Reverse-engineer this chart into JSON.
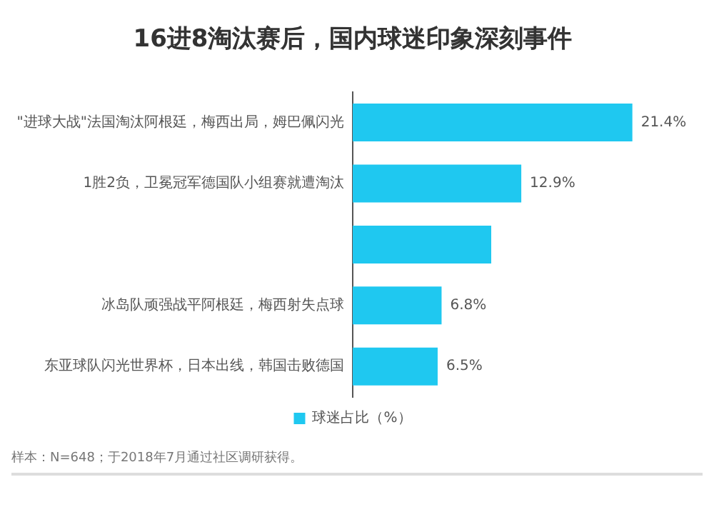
{
  "chart_data": {
    "type": "bar",
    "orientation": "horizontal",
    "title": "16进8淘汰赛后，国内球迷印象深刻事件",
    "categories": [
      "\"进球大战\"法国淘汰阿根廷，梅西出局，姆巴佩闪光",
      "1胜2负，卫冕冠军德国队小组赛就遭淘汰",
      null,
      "冰岛队顽强战平阿根廷，梅西射失点球",
      "东亚球队闪光世界杯，日本出线，韩国击败德国"
    ],
    "series": [
      {
        "name": "球迷占比（%）",
        "color": "#1fc8f0",
        "values": [
          21.4,
          12.9,
          10.6,
          6.8,
          6.5
        ],
        "value_labels": [
          "21.4%",
          "12.9%",
          null,
          "6.8%",
          "6.5%"
        ]
      }
    ],
    "legend": "bottom",
    "annotations": [
      "样本：N=648；于2018年7月通过社区调研获得。"
    ]
  }
}
